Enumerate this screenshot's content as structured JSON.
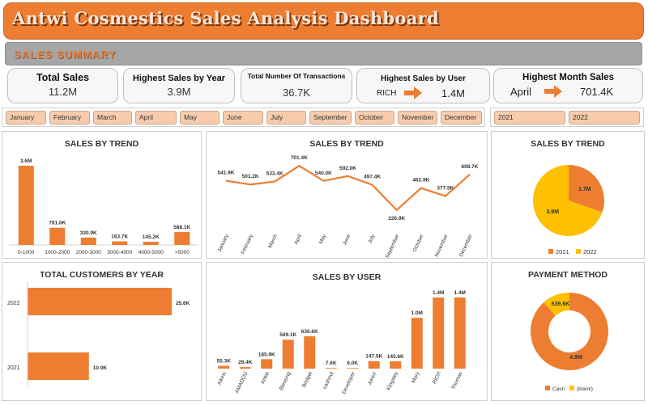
{
  "title": "Antwi Cosmestics Sales Analysis Dashboard",
  "summary_label": "SALES SUMMARY",
  "kpis": {
    "total_sales": {
      "label": "Total Sales",
      "value": "11.2M"
    },
    "highest_year": {
      "label": "Highest Sales by Year",
      "value": "3.9M"
    },
    "transactions": {
      "label": "Total Number Of Transactions",
      "value": "36.7K"
    },
    "highest_user": {
      "label": "Highest Sales by User",
      "name": "RICH",
      "value": "1.4M"
    },
    "highest_month": {
      "label": "Highest Month Sales",
      "name": "April",
      "value": "701.4K"
    }
  },
  "filters": {
    "months": [
      "January",
      "February",
      "March",
      "April",
      "May",
      "June",
      "July",
      "September",
      "October",
      "November",
      "December"
    ],
    "years": [
      "2021",
      "2022"
    ]
  },
  "colors": {
    "orange": "#ed7d31",
    "yellow": "#ffc000",
    "accent_light": "#f8cbad"
  },
  "panels": {
    "trend_bar": "SALES BY TREND",
    "trend_line": "SALES BY TREND",
    "trend_pie": "SALES BY TREND",
    "customers": "TOTAL CUSTOMERS BY YEAR",
    "by_user": "SALES BY USER",
    "payment": "PAYMENT METHOD"
  },
  "chart_data": [
    {
      "id": "trend_bar",
      "type": "bar",
      "title": "SALES BY TREND",
      "categories": [
        "0-1000",
        "1000-2000",
        "2000-3000",
        "3000-4000",
        "4000-5000",
        ">5000"
      ],
      "values": [
        3600000,
        781000,
        330900,
        163700,
        145200,
        588100
      ],
      "labels": [
        "3.6M",
        "781.0K",
        "330.9K",
        "163.7K",
        "145.2K",
        "588.1K"
      ]
    },
    {
      "id": "trend_line",
      "type": "line",
      "title": "SALES BY TREND",
      "categories": [
        "January",
        "February",
        "March",
        "April",
        "May",
        "June",
        "July",
        "September",
        "October",
        "November",
        "December"
      ],
      "values": [
        541900,
        501200,
        533400,
        701400,
        540000,
        592000,
        497400,
        226900,
        462900,
        377500,
        608700
      ],
      "labels": [
        "541.9K",
        "501.2K",
        "533.4K",
        "701.4K",
        "540.0K",
        "592.0K",
        "497.4K",
        "226.9K",
        "462.9K",
        "377.5K",
        "608.7K"
      ]
    },
    {
      "id": "trend_pie",
      "type": "pie",
      "title": "SALES BY TREND",
      "slices": [
        {
          "name": "2021",
          "value": 1700000,
          "label": "1.7M",
          "color": "#ed7d31"
        },
        {
          "name": "2022",
          "value": 3900000,
          "label": "3.9M",
          "color": "#ffc000"
        }
      ],
      "legend": "bottom"
    },
    {
      "id": "customers",
      "type": "bar",
      "orientation": "horizontal",
      "title": "TOTAL CUSTOMERS BY YEAR",
      "categories": [
        "2022",
        "2021"
      ],
      "values": [
        25600,
        10900
      ],
      "labels": [
        "25.6K",
        "10.9K"
      ]
    },
    {
      "id": "by_user",
      "type": "bar",
      "title": "SALES BY USER",
      "categories": [
        "Aikins",
        "AMADOU",
        "Antwi",
        "Blessing",
        "Bridget",
        "cashout",
        "Developer",
        "Junior",
        "Kingsley",
        "Mary",
        "RICH",
        "Thomas"
      ],
      "values": [
        55300,
        29400,
        185900,
        569100,
        636600,
        7600,
        6000,
        147500,
        145600,
        1000000,
        1400000,
        1400000
      ],
      "labels": [
        "55.3K",
        "29.4K",
        "185.9K",
        "569.1K",
        "636.6K",
        "7.6K",
        "6.0K",
        "147.5K",
        "145.6K",
        "1.0M",
        "1.4M",
        "1.4M"
      ]
    },
    {
      "id": "payment",
      "type": "pie",
      "variant": "donut",
      "title": "PAYMENT METHOD",
      "slices": [
        {
          "name": "Cash",
          "value": 4900000,
          "label": "4.9M",
          "color": "#ed7d31"
        },
        {
          "name": "(blank)",
          "value": 639600,
          "label": "639.6K",
          "color": "#ffc000"
        }
      ],
      "legend": "bottom"
    }
  ]
}
